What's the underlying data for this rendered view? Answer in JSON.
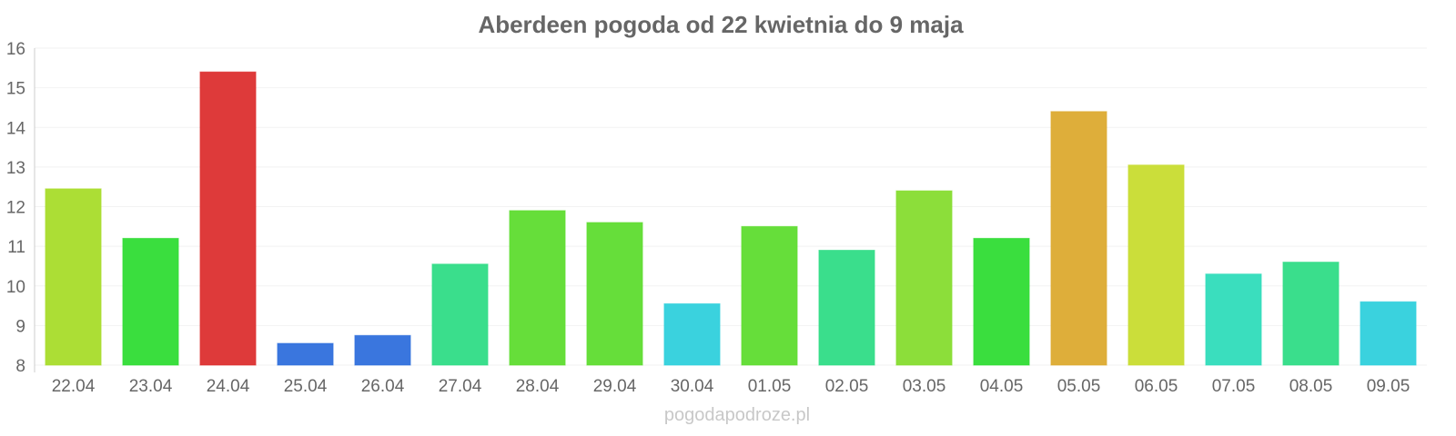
{
  "chart_data": {
    "type": "bar",
    "title": "Aberdeen pogoda od 22 kwietnia do 9 maja",
    "categories": [
      "22.04",
      "23.04",
      "24.04",
      "25.04",
      "26.04",
      "27.04",
      "28.04",
      "29.04",
      "30.04",
      "01.05",
      "02.05",
      "03.05",
      "04.05",
      "05.05",
      "06.05",
      "07.05",
      "08.05",
      "09.05"
    ],
    "values": [
      12.45,
      11.2,
      15.4,
      8.55,
      8.75,
      10.55,
      11.9,
      11.6,
      9.55,
      11.5,
      10.9,
      12.4,
      11.2,
      14.4,
      13.05,
      10.3,
      10.6,
      9.6
    ],
    "colors": [
      "#a8dc2a",
      "#2fdc34",
      "#dc2f2f",
      "#2f6fdc",
      "#2f6fdc",
      "#2fdc86",
      "#5edc2f",
      "#5edc2f",
      "#2fd0dc",
      "#5edc2f",
      "#2fdc86",
      "#86dc2f",
      "#2fdc34",
      "#dcaa2f",
      "#c8dc2f",
      "#2fdcba",
      "#2fdc86",
      "#2fd0dc"
    ],
    "ylim": [
      8,
      16
    ],
    "yticks": [
      8,
      9,
      10,
      11,
      12,
      13,
      14,
      15,
      16
    ],
    "xlabel": "",
    "ylabel": "",
    "grid": true
  },
  "watermark": "pogodapodroze.pl"
}
